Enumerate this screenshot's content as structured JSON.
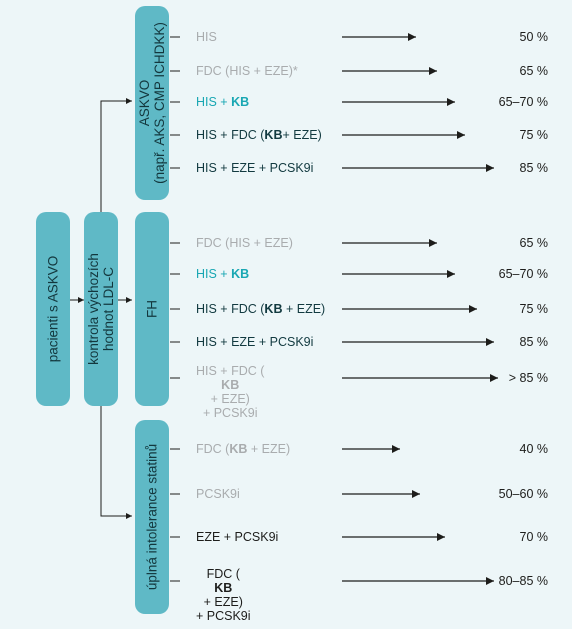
{
  "boxes": {
    "patients": "pacienti s ASKVO",
    "baseline_line1": "kontrola výchozích",
    "baseline_line2": "hodnot LDL-C",
    "askvo_line1": "ASKVO",
    "askvo_line2": "(např. AKS, CMP ICHDKK)",
    "fh": "FH",
    "intolerance": "úplná intolerance statinů"
  },
  "colors": {
    "box": "#5fb9c6",
    "panel": "#edf6f8",
    "gray_text": "#a9acae",
    "teal_text": "#19a7b3",
    "dark_text": "#123a40"
  },
  "askvo_rows": [
    {
      "label": "HIS",
      "bold": "",
      "suffix": "",
      "color": "gray",
      "value": "50 %"
    },
    {
      "label": "FDC (HIS + EZE)*",
      "bold": "",
      "suffix": "",
      "color": "gray",
      "value": "65 %"
    },
    {
      "label": "HIS + ",
      "bold": "KB",
      "suffix": "",
      "color": "teal",
      "value": "65–70 %"
    },
    {
      "label": "HIS + FDC (",
      "bold": "KB",
      "suffix": "+ EZE)",
      "color": "dark",
      "value": "75 %"
    },
    {
      "label": "HIS + EZE + PCSK9i",
      "bold": "",
      "suffix": "",
      "color": "dark",
      "value": "85 %"
    }
  ],
  "fh_rows": [
    {
      "label": "FDC (HIS + EZE)",
      "bold": "",
      "suffix": "",
      "color": "gray",
      "value": "65 %"
    },
    {
      "label": "HIS + ",
      "bold": "KB",
      "suffix": "",
      "color": "teal",
      "value": "65–70 %"
    },
    {
      "label": "HIS + FDC (",
      "bold": "KB",
      "suffix": " + EZE)",
      "color": "dark",
      "value": "75 %"
    },
    {
      "label": "HIS + EZE + PCSK9i",
      "bold": "",
      "suffix": "",
      "color": "dark",
      "value": "85 %"
    },
    {
      "label": "HIS + FDC (",
      "bold": "KB",
      "suffix": " + EZE)",
      "line2": "+ PCSK9i",
      "color": "gray",
      "value": "> 85 %"
    }
  ],
  "intolerance_rows": [
    {
      "label": "FDC (",
      "bold": "KB",
      "suffix": " + EZE)",
      "color": "gray",
      "value": "40 %"
    },
    {
      "label": "PCSK9i",
      "bold": "",
      "suffix": "",
      "color": "gray",
      "value": "50–60 %"
    },
    {
      "label": "EZE + PCSK9i",
      "bold": "",
      "suffix": "",
      "color": "black",
      "value": "70 %"
    },
    {
      "label": "FDC (",
      "bold": "KB",
      "suffix": " + EZE)",
      "line2": "+ PCSK9i",
      "color": "black",
      "value": "80–85 %"
    }
  ]
}
